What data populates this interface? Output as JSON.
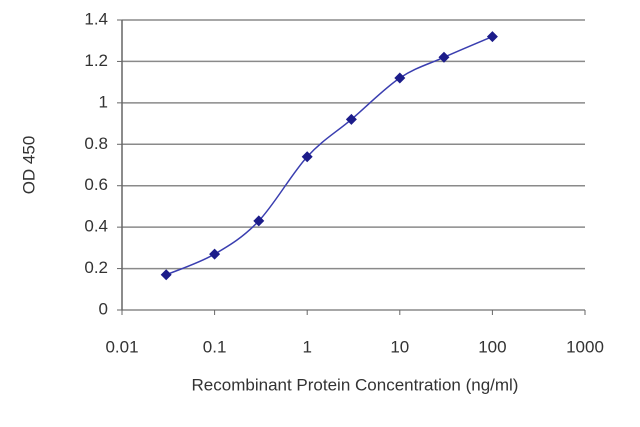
{
  "chart_data": {
    "type": "line",
    "x_label": "Recombinant Protein Concentration (ng/ml)",
    "y_label": "OD 450",
    "x": [
      0.03,
      0.1,
      0.3,
      1,
      3,
      10,
      30,
      100
    ],
    "values": [
      0.17,
      0.27,
      0.43,
      0.74,
      0.92,
      1.12,
      1.22,
      1.32
    ],
    "color": "#3a3eb0",
    "marker_color": "#1c1c8a",
    "xscale": "log",
    "xlim": [
      0.01,
      1000
    ],
    "xticks": [
      0.01,
      0.1,
      1,
      10,
      100,
      1000
    ],
    "ylim": [
      0,
      1.4
    ],
    "yticks": [
      0,
      0.2,
      0.4,
      0.6,
      0.8,
      1,
      1.2,
      1.4
    ],
    "grid": true
  }
}
